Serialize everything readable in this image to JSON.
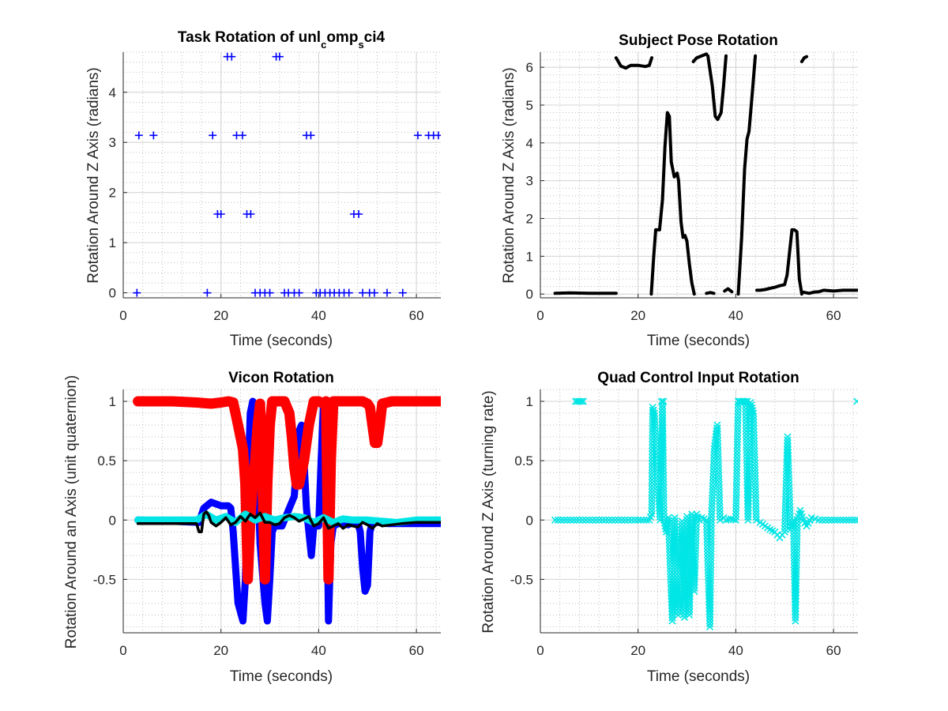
{
  "chart_data": [
    {
      "id": "task",
      "type": "scatter",
      "title": "Task Rotation of unl",
      "title_sub1": "c",
      "title_mid": "omp",
      "title_sub2": "s",
      "title_end": "ci4",
      "xlabel": "Time (seconds)",
      "ylabel": "Rotation Around Z Axis (radians)",
      "xlim": [
        0,
        65
      ],
      "ylim": [
        -0.1,
        4.8
      ],
      "xticks": [
        0,
        20,
        40,
        60
      ],
      "yticks": [
        0,
        1,
        2,
        3,
        4
      ],
      "xtick_labels": [
        "0",
        "20",
        "40",
        "60"
      ],
      "ytick_labels": [
        "0",
        "1",
        "2",
        "3",
        "4"
      ],
      "grid": true,
      "minor_grid": true,
      "series": [
        {
          "marker": "plus",
          "color": "#0000ff",
          "x": [
            2.8,
            3.2,
            6.2,
            17.2,
            18.3,
            19.3,
            20,
            21.3,
            22.2,
            23.2,
            24.4,
            25.3,
            26.1,
            27,
            28,
            29,
            30,
            31.3,
            32,
            33,
            33.8,
            35,
            36,
            37.5,
            38.4,
            39.5,
            40.3,
            41.3,
            42.3,
            43.2,
            44.2,
            45.2,
            46.2,
            47.2,
            48.2,
            49,
            50.4,
            51.4,
            54,
            57.2,
            60.3,
            62.5,
            63.5,
            64.5
          ],
          "y": [
            0,
            3.14,
            3.14,
            0,
            3.14,
            1.57,
            1.57,
            4.71,
            4.71,
            3.14,
            3.14,
            1.57,
            1.57,
            0,
            0,
            0,
            0,
            4.71,
            4.71,
            0,
            0,
            0,
            0,
            3.14,
            3.14,
            0,
            0,
            0,
            0,
            0,
            0,
            0,
            0,
            1.57,
            1.57,
            0,
            0,
            0,
            0,
            0,
            3.14,
            3.14,
            3.14,
            3.14
          ]
        }
      ]
    },
    {
      "id": "pose",
      "type": "line",
      "title": "Subject Pose Rotation",
      "xlabel": "Time (seconds)",
      "ylabel": "Rotation Around Z Axis (radians)",
      "xlim": [
        0,
        65
      ],
      "ylim": [
        -0.1,
        6.4
      ],
      "xticks": [
        0,
        20,
        40,
        60
      ],
      "yticks": [
        0,
        1,
        2,
        3,
        4,
        5,
        6
      ],
      "xtick_labels": [
        "0",
        "20",
        "40",
        "60"
      ],
      "ytick_labels": [
        "0",
        "1",
        "2",
        "3",
        "4",
        "5",
        "6"
      ],
      "grid": true,
      "minor_grid": true,
      "series": [
        {
          "color": "#000000",
          "x": [
            3,
            6,
            10,
            15.5
          ],
          "y": [
            0.02,
            0.03,
            0.02,
            0.02
          ]
        },
        {
          "color": "#000000",
          "x": [
            15.5,
            16.5,
            17.5,
            18.5,
            20,
            21.5,
            22.3,
            22.8
          ],
          "y": [
            6.25,
            6.03,
            5.98,
            6.05,
            6.05,
            6.02,
            6.05,
            6.25
          ]
        },
        {
          "color": "#000000",
          "x": [
            22.7,
            23.2,
            23.6,
            24.4,
            25,
            25.5,
            26,
            26.4,
            26.8,
            27.4,
            28,
            28.3,
            28.8,
            29.2,
            29.6,
            30,
            30.5,
            31,
            31.5
          ],
          "y": [
            0,
            1,
            1.7,
            1.7,
            2.5,
            3.9,
            4.8,
            4.7,
            3.5,
            3.1,
            3.2,
            3,
            1.9,
            1.5,
            1.55,
            1.4,
            0.8,
            0.3,
            0
          ]
        },
        {
          "color": "#000000",
          "x": [
            31.3,
            32,
            33,
            34
          ],
          "y": [
            6.15,
            6.25,
            6.3,
            6.35
          ]
        },
        {
          "color": "#000000",
          "x": [
            34.3,
            35.2,
            35.8,
            36.3,
            37,
            37.5,
            38
          ],
          "y": [
            6.3,
            5.5,
            4.7,
            4.62,
            4.8,
            5.5,
            6.3
          ]
        },
        {
          "color": "#000000",
          "x": [
            34,
            34.8,
            35.5
          ],
          "y": [
            0.02,
            0.04,
            0.02
          ]
        },
        {
          "color": "#000000",
          "x": [
            37.7,
            38.4,
            39.2
          ],
          "y": [
            0.08,
            0.14,
            0.06
          ]
        },
        {
          "color": "#000000",
          "x": [
            40.5,
            41.2,
            41.8,
            42.3,
            42.7,
            43.3,
            44
          ],
          "y": [
            0,
            1.5,
            3.3,
            4.1,
            4.3,
            5.2,
            6.3
          ]
        },
        {
          "color": "#000000",
          "x": [
            44.3,
            45,
            46,
            47,
            48,
            49,
            50,
            50.5,
            51,
            51.5,
            52,
            52.5,
            53,
            53.5
          ],
          "y": [
            0.1,
            0.1,
            0.12,
            0.15,
            0.18,
            0.22,
            0.25,
            0.5,
            1.1,
            1.7,
            1.7,
            1.65,
            0.4,
            0
          ]
        },
        {
          "color": "#000000",
          "x": [
            53.5,
            54,
            54.5
          ],
          "y": [
            6.15,
            6.25,
            6.28
          ]
        },
        {
          "color": "#000000",
          "x": [
            53.8,
            55,
            56,
            57,
            58,
            60,
            62,
            64,
            65
          ],
          "y": [
            0.05,
            0.02,
            0.05,
            0.06,
            0.1,
            0.08,
            0.1,
            0.1,
            0.1
          ]
        }
      ]
    },
    {
      "id": "vicon",
      "type": "line",
      "title": "Vicon Rotation",
      "xlabel": "Time (seconds)",
      "ylabel": "Rotation Around an Axis (unit quaternion)",
      "xlim": [
        0,
        65
      ],
      "ylim": [
        -0.95,
        1.1
      ],
      "xticks": [
        0,
        20,
        40,
        60
      ],
      "yticks": [
        -0.5,
        0,
        0.5,
        1
      ],
      "xtick_labels": [
        "0",
        "20",
        "40",
        "60"
      ],
      "ytick_labels": [
        "-0.5",
        "0",
        "0.5",
        "1"
      ],
      "grid": true,
      "minor_grid": true,
      "series": [
        {
          "color": "#0000ff",
          "width": 9,
          "x": [
            3,
            10,
            15.5,
            16.5,
            18,
            20,
            21.5,
            22,
            22.5,
            23,
            23.5,
            24.5,
            25,
            25.5,
            26,
            26.5,
            27,
            27.5,
            28,
            29,
            29.5,
            30,
            30.5,
            31,
            31.5,
            32,
            32.5,
            33,
            34,
            35,
            35.5,
            36,
            36.5,
            37,
            37.5,
            38,
            38.5,
            39,
            40,
            40.5,
            41,
            41.5,
            42,
            42.5,
            43,
            44,
            45,
            46,
            47,
            48,
            48.5,
            49,
            49.5,
            50,
            50.5,
            51,
            52,
            53,
            54,
            56,
            58,
            60,
            62,
            65
          ],
          "y": [
            0,
            -0.01,
            -0.02,
            0.1,
            0.15,
            0.12,
            0.12,
            0.1,
            -0.1,
            -0.4,
            -0.7,
            -0.85,
            -0.5,
            0.3,
            0.9,
            1,
            0.9,
            0.4,
            -0.2,
            -0.7,
            -0.85,
            -0.5,
            -0.1,
            -0.05,
            -0.05,
            -0.05,
            -0.05,
            0,
            0.1,
            0.2,
            0.5,
            0.75,
            0.8,
            0.5,
            0.1,
            -0.1,
            -0.3,
            -0.05,
            -0.05,
            0.5,
            1,
            0.8,
            -0.85,
            -0.2,
            -0.05,
            -0.03,
            -0.03,
            -0.04,
            -0.02,
            -0.02,
            -0.1,
            -0.4,
            -0.6,
            -0.55,
            -0.1,
            -0.02,
            -0.02,
            -0.02,
            -0.03,
            -0.03,
            -0.03,
            -0.03,
            -0.03,
            -0.03
          ]
        },
        {
          "color": "#ff0000",
          "width": 13,
          "x": [
            3,
            10,
            15,
            18,
            20,
            21.5,
            22.5,
            23.5,
            24.5,
            25,
            25.5,
            26,
            26.5,
            27,
            27.5,
            28,
            28.5,
            29,
            29.5,
            30,
            30.5,
            31,
            32,
            33,
            34,
            34.5,
            35,
            35.5,
            36,
            37,
            38,
            38.5,
            39,
            39.5,
            40,
            41,
            41.5,
            42,
            42.5,
            43,
            44,
            45,
            47,
            49,
            50,
            50.5,
            51,
            51.5,
            52,
            52.5,
            53,
            55,
            58,
            62,
            65
          ],
          "y": [
            1,
            1,
            0.99,
            0.98,
            0.99,
            1,
            0.99,
            0.8,
            0.6,
            0.3,
            -0.5,
            0,
            0.3,
            0.5,
            0.8,
            0.98,
            0.3,
            -0.5,
            0.3,
            0.8,
            1,
            1,
            1,
            1,
            0.9,
            0.7,
            0.45,
            0.3,
            0.3,
            0.5,
            0.8,
            0.9,
            1,
            1,
            1,
            0.98,
            1,
            -0.5,
            0.5,
            1,
            1,
            1,
            1,
            1,
            0.98,
            0.95,
            0.8,
            0.65,
            0.65,
            0.8,
            0.98,
            1,
            1,
            1,
            1
          ]
        },
        {
          "color": "#00e5e5",
          "width": 9,
          "x": [
            3,
            8,
            12,
            15,
            17,
            19,
            21,
            23,
            25,
            27,
            29,
            31,
            33,
            35,
            37,
            39,
            41,
            43,
            45,
            47,
            50,
            53,
            56,
            60,
            65
          ],
          "y": [
            0,
            0,
            0,
            0,
            0.05,
            0,
            0.03,
            -0.02,
            0.05,
            0,
            0.03,
            0,
            0.02,
            0.03,
            0.02,
            -0.02,
            0.02,
            -0.02,
            0.01,
            0,
            0,
            -0.01,
            -0.02,
            0,
            0
          ]
        },
        {
          "color": "#000000",
          "width": 3.5,
          "x": [
            3,
            10,
            15,
            15.5,
            16,
            16.5,
            17,
            17.5,
            18,
            19,
            20,
            21,
            22,
            23,
            24,
            25,
            26,
            27,
            28,
            29,
            30,
            31,
            32,
            33,
            34,
            35,
            36,
            37,
            38,
            39,
            40,
            41,
            42,
            43,
            44,
            45,
            46,
            47,
            48,
            49,
            50,
            51,
            52,
            53,
            55,
            57,
            60,
            62,
            65
          ],
          "y": [
            -0.03,
            -0.03,
            -0.03,
            -0.1,
            -0.1,
            0.05,
            0.07,
            0.04,
            -0.02,
            -0.05,
            -0.02,
            0.02,
            -0.04,
            -0.02,
            0.03,
            -0.01,
            0.05,
            0.02,
            0.06,
            -0.02,
            -0.02,
            -0.04,
            -0.03,
            0.02,
            0.04,
            0.02,
            -0.01,
            0.01,
            0.03,
            -0.05,
            -0.03,
            0.02,
            -0.07,
            -0.05,
            -0.03,
            -0.07,
            -0.04,
            -0.05,
            -0.06,
            -0.02,
            -0.04,
            -0.07,
            -0.03,
            -0.05,
            -0.04,
            -0.03,
            -0.02,
            -0.02,
            -0.02
          ]
        }
      ]
    },
    {
      "id": "quad",
      "type": "scatter",
      "title": "Quad Control Input Rotation",
      "xlabel": "Time (seconds)",
      "ylabel": "Rotation Around Z Axis (turning rate)",
      "xlim": [
        0,
        65
      ],
      "ylim": [
        -0.95,
        1.1
      ],
      "xticks": [
        0,
        20,
        40,
        60
      ],
      "yticks": [
        -0.5,
        0,
        0.5,
        1
      ],
      "xtick_labels": [
        "0",
        "20",
        "40",
        "60"
      ],
      "ytick_labels": [
        "-0.5",
        "0",
        "0.5",
        "1"
      ],
      "grid": true,
      "minor_grid": true,
      "series": [
        {
          "marker": "x",
          "color": "#00e5e5",
          "dense": true,
          "x": [
            3,
            8,
            12,
            16,
            20,
            22.3,
            22.8,
            23,
            23.3,
            24.5,
            25,
            25.3,
            25.8,
            26.2,
            27,
            27.5,
            28.2,
            29,
            29.5,
            30,
            30.5,
            31,
            31.5,
            32,
            32.5,
            33,
            34,
            34.7,
            35,
            35.6,
            36.2,
            36.8,
            37.5,
            38,
            39,
            40,
            40.5,
            41,
            41.5,
            42,
            42.5,
            43,
            43.6,
            44.2,
            45,
            46,
            47,
            48,
            49,
            50,
            50.6,
            51.2,
            51.8,
            52.2,
            52.6,
            53.2,
            53.8,
            54.5,
            55.5,
            57,
            59,
            62,
            65
          ],
          "y": [
            0,
            0,
            0,
            0,
            0,
            0,
            0.05,
            0.95,
            0.9,
            0,
            0.99,
            0,
            -0.1,
            0.02,
            -0.85,
            0.02,
            -0.8,
            -0.01,
            -0.82,
            0.03,
            -0.8,
            0.05,
            -0.6,
            0.05,
            0,
            0.02,
            0,
            -0.9,
            0,
            0.6,
            0.8,
            0,
            0.02,
            0,
            0.01,
            0,
            1,
            0.99,
            1,
            0.99,
            0,
            0.99,
            0.9,
            0,
            -0.02,
            -0.05,
            -0.08,
            -0.1,
            -0.15,
            -0.1,
            0.7,
            -0.08,
            0,
            -0.85,
            0,
            0.08,
            0,
            -0.05,
            0.02,
            0,
            0,
            0,
            0
          ]
        },
        {
          "marker": "x",
          "color": "#00e5e5",
          "dense": false,
          "x": [
            7.2,
            7.6,
            8,
            8.4,
            8.8,
            24.8,
            25.2,
            40.8,
            41.2,
            41.6,
            42,
            42.4,
            64.8
          ],
          "y": [
            1,
            1,
            1,
            1,
            1,
            1,
            1,
            1,
            1,
            1,
            1,
            1,
            1
          ]
        }
      ]
    }
  ]
}
